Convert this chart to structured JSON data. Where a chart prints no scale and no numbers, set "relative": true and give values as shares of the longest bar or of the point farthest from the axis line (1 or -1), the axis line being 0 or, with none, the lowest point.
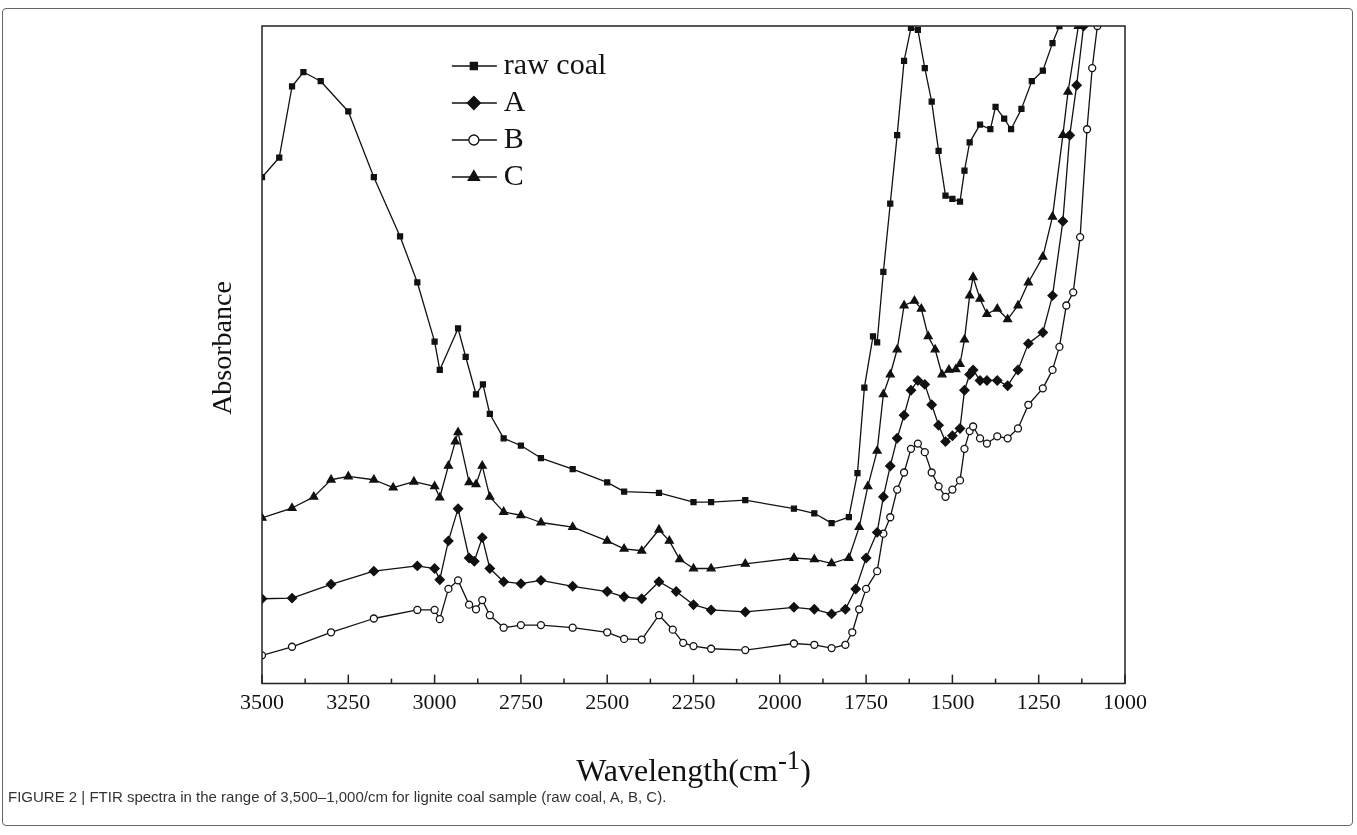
{
  "chart_data": {
    "type": "line",
    "relative": true,
    "xlabel": "Wavelength(cm$^{-1}$)",
    "ylabel": "Absorbance",
    "legend": "top left",
    "xlim": [
      3500,
      1000
    ],
    "xticks": [
      3500,
      {
        "value": 3375,
        "label": null
      },
      3250,
      {
        "value": 3125,
        "label": null
      },
      3000,
      {
        "value": 2875,
        "label": null
      },
      2750,
      {
        "value": 2625,
        "label": null
      },
      2500,
      {
        "value": 2375,
        "label": null
      },
      2250,
      {
        "value": 2125,
        "label": null
      },
      2000,
      {
        "value": 1875,
        "label": null
      },
      1750,
      {
        "value": 1625,
        "label": null
      },
      1500,
      {
        "value": 1375,
        "label": null
      },
      1250,
      {
        "value": 1125,
        "label": null
      },
      1000
    ],
    "annotations": [
      "FIGURE 2 | FTIR spectra in the range of 3,500–1,000/cm for lignite coal sample (raw coal, A, B, C)."
    ],
    "series": [
      {
        "name": "raw coal",
        "color": "#111111",
        "marker": "square",
        "x": [
          3500,
          3450,
          3413,
          3380,
          3330,
          3250,
          3176,
          3100,
          3050,
          3000,
          2985,
          2932,
          2910,
          2880,
          2860,
          2840,
          2800,
          2750,
          2692,
          2600,
          2500,
          2451,
          2350,
          2250,
          2199,
          2100,
          1959,
          1900,
          1850,
          1800,
          1775,
          1755,
          1730,
          1718,
          1700,
          1680,
          1660,
          1640,
          1620,
          1600,
          1580,
          1560,
          1540,
          1520,
          1500,
          1478,
          1465,
          1450,
          1420,
          1390,
          1375,
          1350,
          1330,
          1300,
          1270,
          1238,
          1210,
          1190
        ],
        "values": [
          0.77,
          0.8,
          0.908,
          0.93,
          0.916,
          0.87,
          0.77,
          0.68,
          0.61,
          0.52,
          0.477,
          0.54,
          0.497,
          0.44,
          0.455,
          0.41,
          0.373,
          0.362,
          0.343,
          0.326,
          0.306,
          0.292,
          0.29,
          0.276,
          0.276,
          0.279,
          0.266,
          0.259,
          0.244,
          0.253,
          0.32,
          0.45,
          0.528,
          0.519,
          0.626,
          0.73,
          0.834,
          0.947,
          0.997,
          0.994,
          0.936,
          0.885,
          0.81,
          0.742,
          0.737,
          0.733,
          0.78,
          0.823,
          0.85,
          0.843,
          0.877,
          0.859,
          0.843,
          0.874,
          0.916,
          0.932,
          0.974,
          1.0
        ]
      },
      {
        "name": "A",
        "color": "#111111",
        "marker": "diamond",
        "x": [
          3500,
          3413,
          3300,
          3176,
          3050,
          3000,
          2985,
          2960,
          2932,
          2900,
          2885,
          2862,
          2840,
          2800,
          2750,
          2692,
          2600,
          2500,
          2451,
          2400,
          2350,
          2300,
          2250,
          2199,
          2100,
          1959,
          1900,
          1850,
          1810,
          1780,
          1750,
          1718,
          1700,
          1680,
          1660,
          1640,
          1620,
          1600,
          1580,
          1560,
          1540,
          1520,
          1500,
          1478,
          1465,
          1450,
          1440,
          1420,
          1400,
          1370,
          1340,
          1310,
          1280,
          1238,
          1210,
          1180,
          1160,
          1140,
          1120
        ],
        "values": [
          0.129,
          0.13,
          0.151,
          0.171,
          0.179,
          0.175,
          0.158,
          0.217,
          0.266,
          0.191,
          0.186,
          0.222,
          0.175,
          0.155,
          0.152,
          0.157,
          0.148,
          0.14,
          0.132,
          0.129,
          0.155,
          0.14,
          0.12,
          0.112,
          0.109,
          0.116,
          0.113,
          0.106,
          0.113,
          0.144,
          0.191,
          0.23,
          0.284,
          0.331,
          0.373,
          0.408,
          0.446,
          0.461,
          0.455,
          0.424,
          0.393,
          0.368,
          0.377,
          0.388,
          0.446,
          0.47,
          0.477,
          0.461,
          0.461,
          0.461,
          0.453,
          0.477,
          0.517,
          0.534,
          0.59,
          0.703,
          0.834,
          0.91,
          1.0
        ]
      },
      {
        "name": "B",
        "color": "#111111",
        "marker": "circle",
        "x": [
          3500,
          3413,
          3300,
          3176,
          3050,
          3000,
          2985,
          2960,
          2932,
          2900,
          2880,
          2862,
          2840,
          2800,
          2750,
          2692,
          2600,
          2500,
          2451,
          2400,
          2350,
          2310,
          2280,
          2250,
          2199,
          2100,
          1959,
          1900,
          1850,
          1810,
          1790,
          1770,
          1750,
          1718,
          1700,
          1680,
          1660,
          1640,
          1620,
          1600,
          1580,
          1560,
          1540,
          1520,
          1500,
          1478,
          1465,
          1450,
          1440,
          1420,
          1400,
          1370,
          1340,
          1310,
          1280,
          1238,
          1210,
          1190,
          1170,
          1150,
          1130,
          1110,
          1095,
          1080
        ],
        "values": [
          0.043,
          0.056,
          0.078,
          0.099,
          0.112,
          0.112,
          0.098,
          0.144,
          0.157,
          0.12,
          0.113,
          0.127,
          0.104,
          0.085,
          0.089,
          0.089,
          0.085,
          0.078,
          0.068,
          0.067,
          0.104,
          0.082,
          0.062,
          0.057,
          0.053,
          0.051,
          0.061,
          0.059,
          0.054,
          0.059,
          0.078,
          0.113,
          0.144,
          0.171,
          0.228,
          0.253,
          0.295,
          0.321,
          0.357,
          0.365,
          0.352,
          0.321,
          0.3,
          0.284,
          0.295,
          0.309,
          0.357,
          0.384,
          0.391,
          0.373,
          0.365,
          0.376,
          0.373,
          0.388,
          0.424,
          0.449,
          0.477,
          0.512,
          0.575,
          0.595,
          0.679,
          0.843,
          0.936,
          1.0
        ]
      },
      {
        "name": "C",
        "color": "#111111",
        "marker": "triangle",
        "x": [
          3500,
          3413,
          3350,
          3300,
          3250,
          3176,
          3120,
          3060,
          3000,
          2985,
          2960,
          2940,
          2932,
          2900,
          2880,
          2862,
          2840,
          2800,
          2750,
          2692,
          2600,
          2500,
          2451,
          2400,
          2350,
          2320,
          2290,
          2250,
          2199,
          2100,
          1959,
          1900,
          1850,
          1800,
          1770,
          1745,
          1718,
          1700,
          1680,
          1660,
          1640,
          1610,
          1590,
          1570,
          1550,
          1530,
          1510,
          1490,
          1478,
          1465,
          1450,
          1440,
          1420,
          1400,
          1370,
          1340,
          1310,
          1280,
          1238,
          1210,
          1180,
          1165,
          1135
        ],
        "values": [
          0.252,
          0.267,
          0.284,
          0.31,
          0.315,
          0.31,
          0.298,
          0.307,
          0.3,
          0.283,
          0.331,
          0.368,
          0.382,
          0.306,
          0.303,
          0.331,
          0.284,
          0.261,
          0.256,
          0.245,
          0.238,
          0.217,
          0.205,
          0.202,
          0.234,
          0.217,
          0.189,
          0.175,
          0.175,
          0.182,
          0.191,
          0.189,
          0.183,
          0.191,
          0.238,
          0.3,
          0.354,
          0.44,
          0.47,
          0.508,
          0.575,
          0.582,
          0.57,
          0.528,
          0.508,
          0.47,
          0.477,
          0.478,
          0.486,
          0.523,
          0.59,
          0.618,
          0.585,
          0.562,
          0.57,
          0.554,
          0.575,
          0.61,
          0.649,
          0.71,
          0.834,
          0.9,
          1.0
        ]
      }
    ]
  }
}
